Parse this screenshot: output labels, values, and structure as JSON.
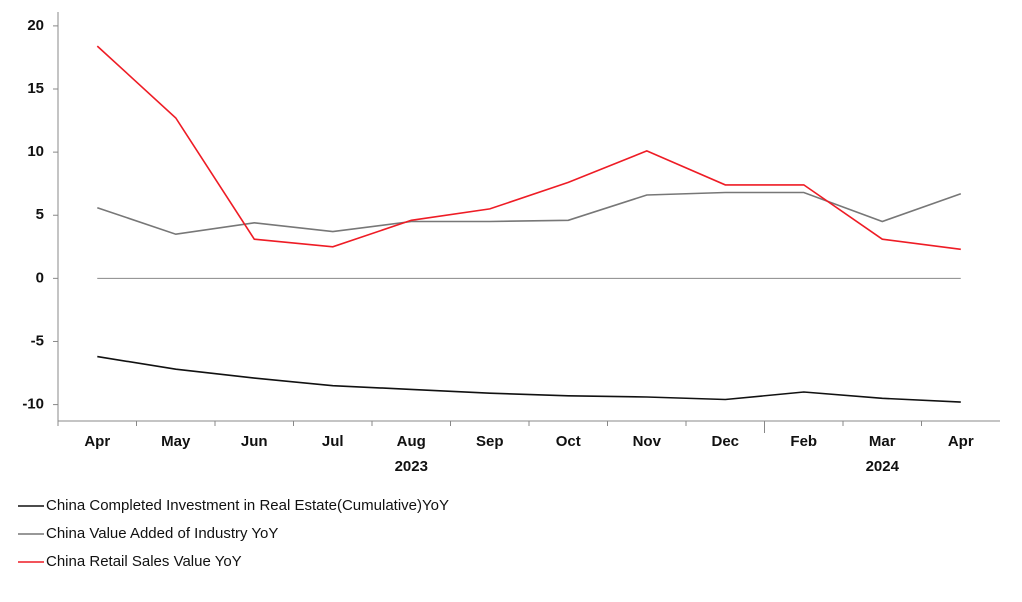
{
  "chart_data": {
    "type": "line",
    "categories": [
      "Apr",
      "May",
      "Jun",
      "Jul",
      "Aug",
      "Sep",
      "Oct",
      "Nov",
      "Dec",
      "Feb",
      "Mar",
      "Apr"
    ],
    "x_groups": [
      {
        "label": "2023",
        "count": 9
      },
      {
        "label": "2024",
        "count": 3
      }
    ],
    "series": [
      {
        "name": "China Completed Investment in Real Estate(Cumulative)YoY",
        "color": "#111111",
        "values": [
          -6.2,
          -7.2,
          -7.9,
          -8.5,
          -8.8,
          -9.1,
          -9.3,
          -9.4,
          -9.6,
          -9.0,
          -9.5,
          -9.8
        ]
      },
      {
        "name": "China Value Added of Industry YoY",
        "color": "#777777",
        "values": [
          5.6,
          3.5,
          4.4,
          3.7,
          4.5,
          4.5,
          4.6,
          6.6,
          6.8,
          6.8,
          4.5,
          6.7
        ]
      },
      {
        "name": "China Retail Sales Value YoY",
        "color": "#ee1c25",
        "values": [
          18.4,
          12.7,
          3.1,
          2.5,
          4.6,
          5.5,
          7.6,
          10.1,
          7.4,
          7.4,
          3.1,
          2.3
        ]
      }
    ],
    "ylim": [
      -11.3,
      21.1
    ],
    "yticks": [
      -10,
      -5,
      0,
      5,
      10,
      15,
      20
    ],
    "zero_line": true,
    "grid": false,
    "legend": "bottom-left"
  }
}
